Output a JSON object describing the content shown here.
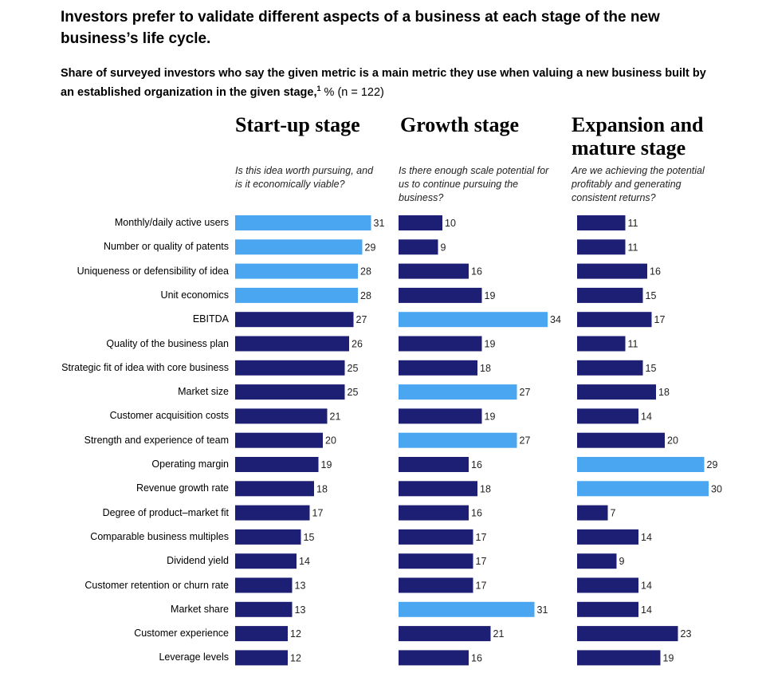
{
  "title": "Investors prefer to validate different aspects of a business at each stage of the new business’s life cycle.",
  "subtitle": {
    "bold_text": "Share of surveyed investors who say the given metric is a main metric they use when valuing a new business built by an established organization in the given stage,",
    "footnote_mark": "1",
    "rest": " % (n = 122)"
  },
  "colors": {
    "dark_bar": "#1c1f74",
    "light_bar": "#4aa6f1"
  },
  "stages": [
    {
      "title": "Start-up stage",
      "question": "Is this idea worth pursuing, and is it economically viable?"
    },
    {
      "title": "Growth stage",
      "question": "Is there enough scale potential for us to continue pursuing the business?"
    },
    {
      "title": "Expansion and mature stage",
      "question": "Are we achieving the potential profitably and generating consistent returns?"
    }
  ],
  "chart_data": {
    "type": "bar",
    "orientation": "horizontal",
    "categories": [
      "Monthly/daily active users",
      "Number or quality of patents",
      "Uniqueness or defensibility of idea",
      "Unit economics",
      "EBITDA",
      "Quality of the business plan",
      "Strategic fit of idea with core business",
      "Market size",
      "Customer acquisition costs",
      "Strength and experience of team",
      "Operating margin",
      "Revenue growth rate",
      "Degree of product–market fit",
      "Comparable business multiples",
      "Dividend yield",
      "Customer retention or churn rate",
      "Market share",
      "Customer experience",
      "Leverage levels"
    ],
    "series": [
      {
        "name": "Start-up stage",
        "values": [
          31,
          29,
          28,
          28,
          27,
          26,
          25,
          25,
          21,
          20,
          19,
          18,
          17,
          15,
          14,
          13,
          13,
          12,
          12
        ],
        "highlighted": [
          0,
          1,
          2,
          3
        ]
      },
      {
        "name": "Growth stage",
        "values": [
          10,
          9,
          16,
          19,
          34,
          19,
          18,
          27,
          19,
          27,
          16,
          18,
          16,
          17,
          17,
          17,
          31,
          21,
          16
        ],
        "highlighted": [
          4,
          7,
          9,
          16
        ]
      },
      {
        "name": "Expansion and mature stage",
        "values": [
          11,
          11,
          16,
          15,
          17,
          11,
          15,
          18,
          14,
          20,
          29,
          30,
          7,
          14,
          9,
          14,
          14,
          23,
          19
        ],
        "highlighted": [
          10,
          11
        ]
      }
    ],
    "xlim": [
      0,
      35
    ]
  }
}
